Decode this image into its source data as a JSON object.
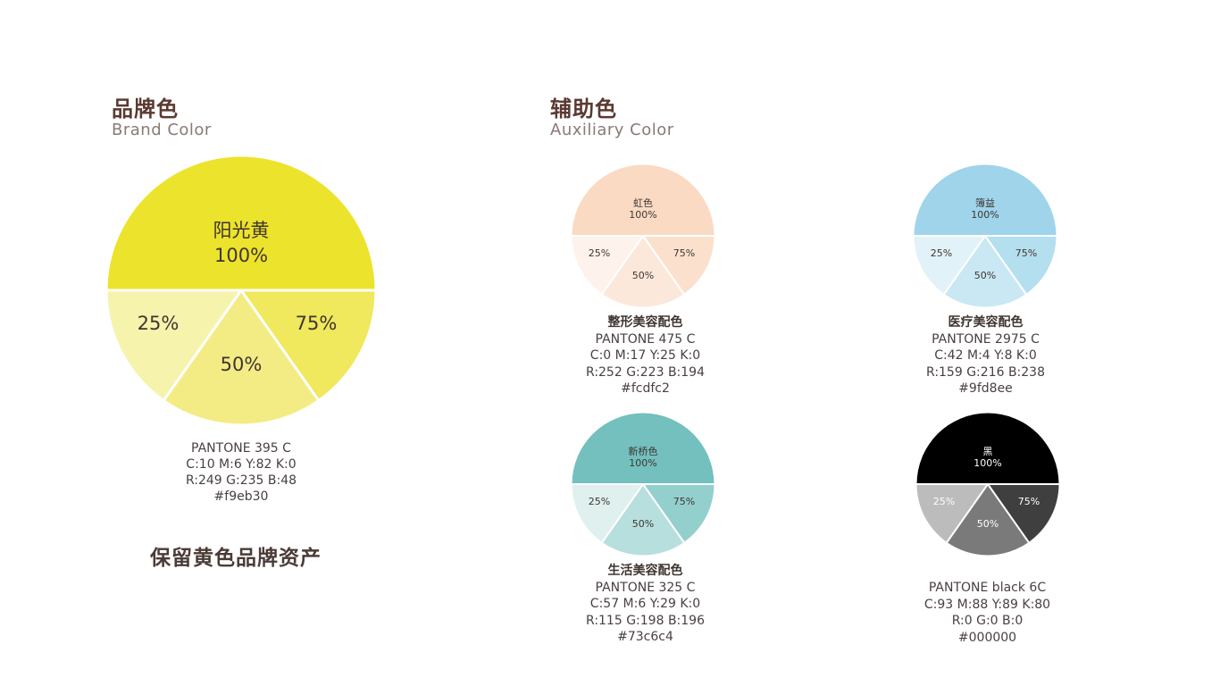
{
  "brand": {
    "title": "品牌色",
    "subtitle": "Brand Color",
    "slogan": "保留黄色品牌资产",
    "swatch": {
      "name": "阳光黄",
      "full": "100%",
      "pct25": "25%",
      "pct50": "50%",
      "pct75": "75%",
      "colors": {
        "full": "#ece32c",
        "tint25": "#f6f3ad",
        "tint50": "#f3ec85",
        "tint75": "#f0e85d"
      },
      "info": [
        "PANTONE 395 C",
        "C:10  M:6  Y:82  K:0",
        "R:249  G:235  B:48",
        "#f9eb30"
      ]
    }
  },
  "auxiliary": {
    "title": "辅助色",
    "subtitle": "Auxiliary Color",
    "swatches": [
      {
        "name": "虹色",
        "full": "100%",
        "pct25": "25%",
        "pct50": "50%",
        "pct75": "75%",
        "colors": {
          "full": "#fadac3",
          "tint25": "#fdf3ec",
          "tint50": "#fce8da",
          "tint75": "#fbe1cd"
        },
        "label": "整形美容配色",
        "info": [
          "PANTONE 475 C",
          "C:0  M:17  Y:25  K:0",
          "R:252  G:223  B:194",
          "#fcdfc2"
        ]
      },
      {
        "name": "簿益",
        "full": "100%",
        "pct25": "25%",
        "pct50": "50%",
        "pct75": "75%",
        "colors": {
          "full": "#9fd4ea",
          "tint25": "#e2f2f9",
          "tint50": "#c9e8f4",
          "tint75": "#b4dfef"
        },
        "label": "医疗美容配色",
        "info": [
          "PANTONE 2975 C",
          "C:42  M:4  Y:8  K:0",
          "R:159  G:216  B:238",
          "#9fd8ee"
        ]
      },
      {
        "name": "新桥色",
        "full": "100%",
        "pct25": "25%",
        "pct50": "50%",
        "pct75": "75%",
        "colors": {
          "full": "#73c0be",
          "tint25": "#dff0ef",
          "tint50": "#b7dfdd",
          "tint75": "#93d0cd"
        },
        "label": "生活美容配色",
        "info": [
          "PANTONE 325 C",
          "C:57  M:6  Y:29  K:0",
          "R:115  G:198  B:196",
          "#73c6c4"
        ]
      },
      {
        "name": "黑",
        "full": "100%",
        "pct25": "25%",
        "pct50": "50%",
        "pct75": "75%",
        "colors": {
          "full": "#000000",
          "tint25": "#bcbcbc",
          "tint50": "#7a7a7a",
          "tint75": "#3f3f3f"
        },
        "label": "",
        "info": [
          "PANTONE black 6C",
          "C:93  M:88  Y:89  K:80",
          "R:0  G:0  B:0",
          "#000000"
        ]
      }
    ]
  }
}
